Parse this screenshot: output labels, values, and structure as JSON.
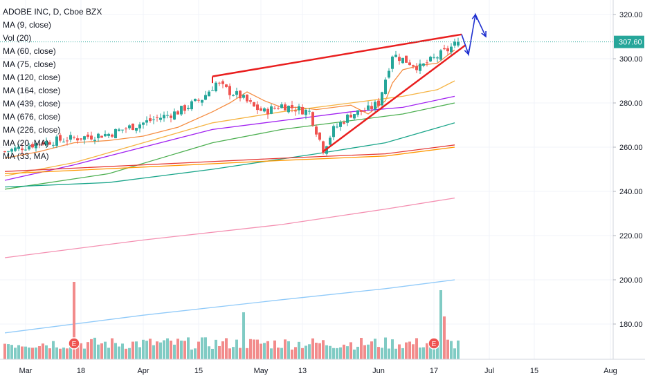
{
  "chart_data": {
    "type": "candlestick",
    "title": "ADOBE INC, D, Cboe BZX",
    "legend": [
      "MA (9, close)",
      "Vol (20)",
      "MA (60, close)",
      "MA (75, close)",
      "MA (120, close)",
      "MA (164, close)",
      "MA (439, close)",
      "MA (676, close)",
      "MA (226, close)",
      "MA (20, MA)",
      "MA (33, MA)"
    ],
    "y_ticks": [
      "320.00",
      "300.00",
      "280.00",
      "260.00",
      "240.00",
      "220.00",
      "200.00",
      "180.00"
    ],
    "x_ticks": [
      "Mar",
      "18",
      "Apr",
      "15",
      "May",
      "13",
      "Jun",
      "17",
      "Jul",
      "15",
      "Aug"
    ],
    "ylim": [
      163,
      325
    ],
    "last_price": "307.60",
    "last_price_value": 307.6,
    "earnings_label": "E",
    "colors": {
      "up": "#26a69a",
      "down": "#ef5350",
      "vol_up": "#80cbc4",
      "vol_down": "#f28b8b",
      "trendline": "#e91e1e",
      "projection": "#1e2fcf",
      "price_line": "#26a69a"
    },
    "ma_lines": [
      {
        "name": "MA (9, close)",
        "color": "#f58d42",
        "pts": [
          [
            0,
            255
          ],
          [
            10,
            258
          ],
          [
            20,
            262
          ],
          [
            30,
            263
          ],
          [
            40,
            265
          ],
          [
            50,
            269
          ],
          [
            60,
            276
          ],
          [
            65,
            280
          ],
          [
            70,
            285
          ],
          [
            75,
            281
          ],
          [
            80,
            278
          ],
          [
            85,
            278
          ],
          [
            90,
            277
          ],
          [
            95,
            278
          ],
          [
            100,
            279
          ],
          [
            105,
            275
          ],
          [
            110,
            281
          ],
          [
            112,
            289
          ],
          [
            115,
            295
          ],
          [
            120,
            297
          ],
          [
            125,
            298
          ],
          [
            130,
            304
          ]
        ]
      },
      {
        "name": "MA (60, close)",
        "color": "#f5b342",
        "pts": [
          [
            0,
            247
          ],
          [
            20,
            253
          ],
          [
            40,
            262
          ],
          [
            60,
            271
          ],
          [
            80,
            276
          ],
          [
            100,
            280
          ],
          [
            115,
            283
          ],
          [
            125,
            286
          ],
          [
            130,
            290
          ]
        ]
      },
      {
        "name": "MA (75, close)",
        "color": "#a020f0",
        "pts": [
          [
            0,
            245
          ],
          [
            20,
            252
          ],
          [
            40,
            260
          ],
          [
            60,
            268
          ],
          [
            80,
            272
          ],
          [
            100,
            276
          ],
          [
            115,
            278
          ],
          [
            130,
            283
          ]
        ]
      },
      {
        "name": "MA (120, close)",
        "color": "#4caf50",
        "pts": [
          [
            0,
            241
          ],
          [
            30,
            248
          ],
          [
            60,
            262
          ],
          [
            80,
            268
          ],
          [
            100,
            272
          ],
          [
            115,
            275
          ],
          [
            130,
            280
          ]
        ]
      },
      {
        "name": "MA (164, close)",
        "color": "#1aa58a",
        "pts": [
          [
            0,
            242
          ],
          [
            30,
            244
          ],
          [
            60,
            250
          ],
          [
            90,
            257
          ],
          [
            110,
            262
          ],
          [
            130,
            271
          ]
        ]
      },
      {
        "name": "MA (226, close)",
        "color": "#ff9800",
        "pts": [
          [
            0,
            248
          ],
          [
            40,
            251
          ],
          [
            80,
            254
          ],
          [
            110,
            256
          ],
          [
            130,
            260
          ]
        ]
      },
      {
        "name": "MA (439, close)",
        "color": "#e53935",
        "pts": [
          [
            0,
            249
          ],
          [
            40,
            252
          ],
          [
            80,
            255
          ],
          [
            110,
            257
          ],
          [
            130,
            261
          ]
        ]
      },
      {
        "name": "MA (676, close)",
        "color": "#f48fb1",
        "pts": [
          [
            0,
            210
          ],
          [
            40,
            218
          ],
          [
            80,
            225
          ],
          [
            110,
            232
          ],
          [
            130,
            237
          ]
        ]
      },
      {
        "name": "MA (20, MA)",
        "color": "#90caf9",
        "pts": [
          [
            0,
            176
          ],
          [
            40,
            184
          ],
          [
            80,
            191
          ],
          [
            110,
            196
          ],
          [
            130,
            200
          ]
        ]
      }
    ],
    "trendlines": [
      {
        "from": [
          60,
          292
        ],
        "to": [
          132,
          311
        ]
      },
      {
        "from": [
          92,
          258
        ],
        "to": [
          133,
          306
        ]
      }
    ],
    "projection": [
      [
        132,
        311
      ],
      [
        134,
        302
      ],
      [
        136,
        320
      ],
      [
        139,
        310
      ]
    ]
  }
}
